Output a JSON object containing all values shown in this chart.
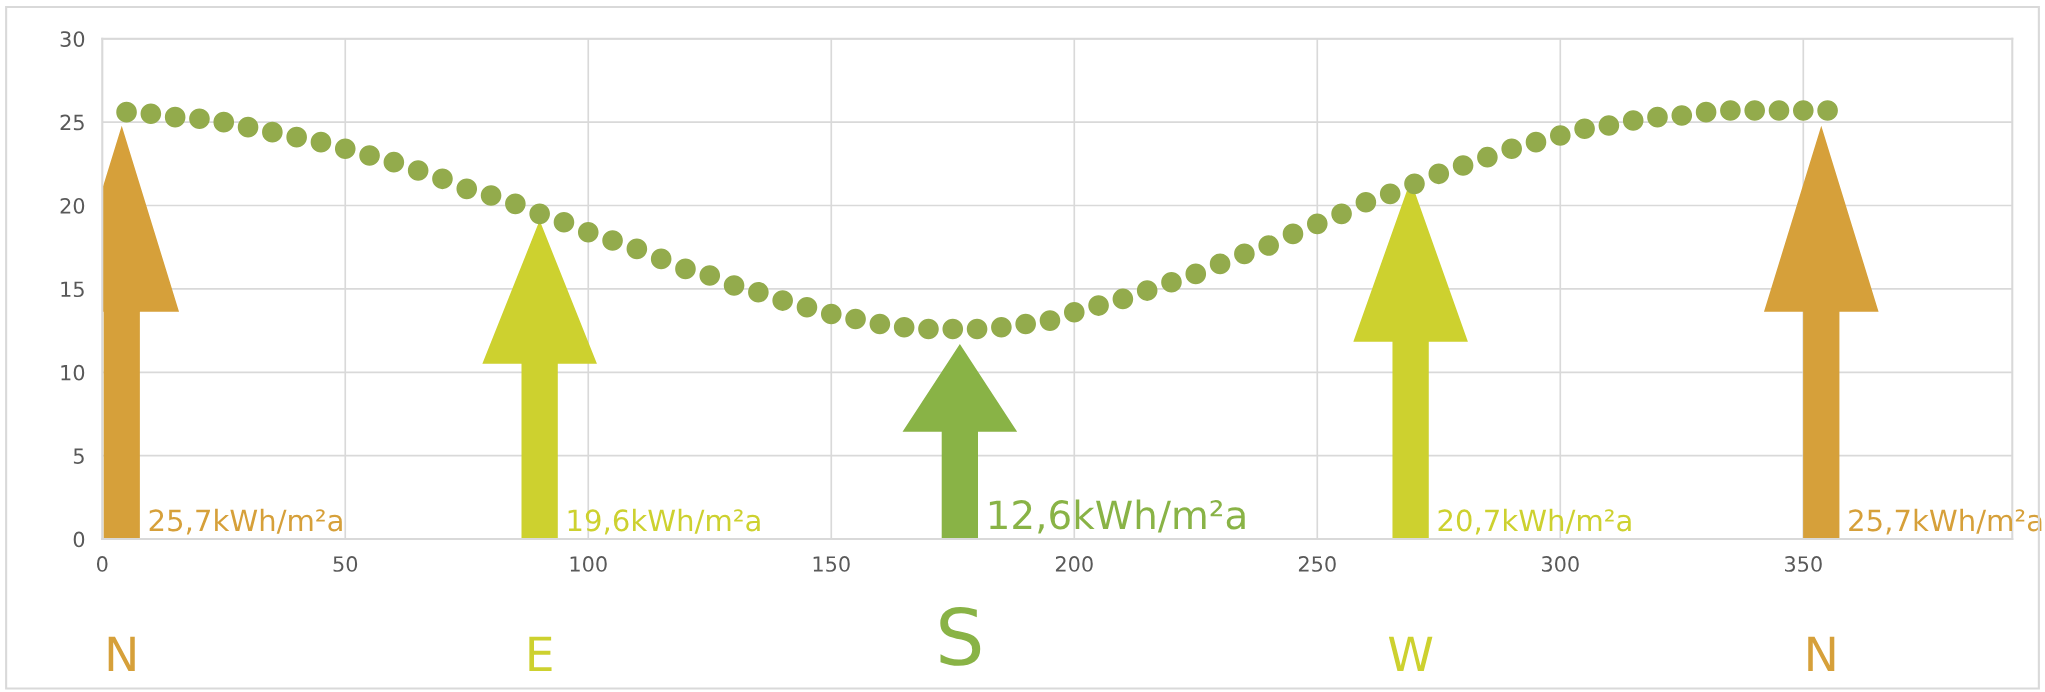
{
  "chart_data": {
    "type": "scatter",
    "marker": "circle",
    "grid": true,
    "x": [
      5,
      10,
      15,
      20,
      25,
      30,
      35,
      40,
      45,
      50,
      55,
      60,
      65,
      70,
      75,
      80,
      85,
      90,
      95,
      100,
      105,
      110,
      115,
      120,
      125,
      130,
      135,
      140,
      145,
      150,
      155,
      160,
      165,
      170,
      175,
      180,
      185,
      190,
      195,
      200,
      205,
      210,
      215,
      220,
      225,
      230,
      235,
      240,
      245,
      250,
      255,
      260,
      265,
      270,
      275,
      280,
      285,
      290,
      295,
      300,
      305,
      310,
      315,
      320,
      325,
      330,
      335,
      340,
      345,
      350,
      355
    ],
    "series": [
      {
        "color": "#93ab4c",
        "values": [
          25.6,
          25.5,
          25.3,
          25.2,
          25.0,
          24.7,
          24.4,
          24.1,
          23.8,
          23.4,
          23.0,
          22.6,
          22.1,
          21.6,
          21.0,
          20.6,
          20.1,
          19.5,
          19.0,
          18.4,
          17.9,
          17.4,
          16.8,
          16.2,
          15.8,
          15.2,
          14.8,
          14.3,
          13.9,
          13.5,
          13.2,
          12.9,
          12.7,
          12.6,
          12.6,
          12.6,
          12.7,
          12.9,
          13.1,
          13.6,
          14.0,
          14.4,
          14.9,
          15.4,
          15.9,
          16.5,
          17.1,
          17.6,
          18.3,
          18.9,
          19.5,
          20.2,
          20.7,
          21.3,
          21.9,
          22.4,
          22.9,
          23.4,
          23.8,
          24.2,
          24.6,
          24.8,
          25.1,
          25.3,
          25.4,
          25.6,
          25.7,
          25.7,
          25.7,
          25.7,
          25.7
        ]
      }
    ],
    "xlim": [
      0,
      393
    ],
    "xticks": [
      0,
      50,
      100,
      150,
      200,
      250,
      300,
      350
    ],
    "ylim": [
      0,
      30
    ],
    "yticks": [
      0,
      5,
      10,
      15,
      20,
      25,
      30
    ],
    "annotations": [
      "25,7kWh/m²a",
      "19,6kWh/m²a",
      "12,6kWh/m²a",
      "20,7kWh/m²a",
      "25,7kWh/m²a",
      "N",
      "E",
      "S",
      "W",
      "N"
    ]
  }
}
